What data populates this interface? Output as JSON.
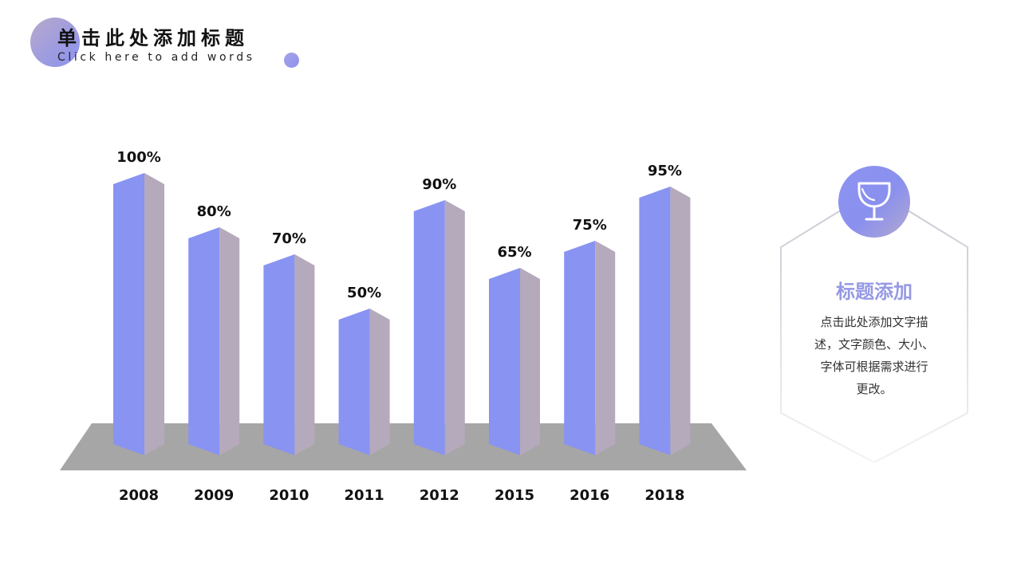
{
  "header": {
    "title": "单击此处添加标题",
    "subtitle": "Click here to add words"
  },
  "colors": {
    "bar_front": "#8893f2",
    "bar_side": "#b5a9bc",
    "bar_top": "#b0a8d2",
    "floor": "#a6a6a6",
    "accent": "#9599e4"
  },
  "chart_data": {
    "type": "bar",
    "categories": [
      "2008",
      "2009",
      "2010",
      "2011",
      "2012",
      "2015",
      "2016",
      "2018"
    ],
    "values": [
      100,
      80,
      70,
      50,
      90,
      65,
      75,
      95
    ],
    "value_labels": [
      "100%",
      "80%",
      "70%",
      "50%",
      "90%",
      "65%",
      "75%",
      "95%"
    ],
    "title": "",
    "xlabel": "",
    "ylabel": "",
    "ylim": [
      0,
      100
    ],
    "grid": false,
    "legend": "none",
    "style": "3d-column"
  },
  "info_panel": {
    "icon": "trophy-icon",
    "heading": "标题添加",
    "lines": [
      "点击此处添加文字描",
      "述，文字颜色、大小、",
      "字体可根据需求进行",
      "更改。"
    ]
  }
}
